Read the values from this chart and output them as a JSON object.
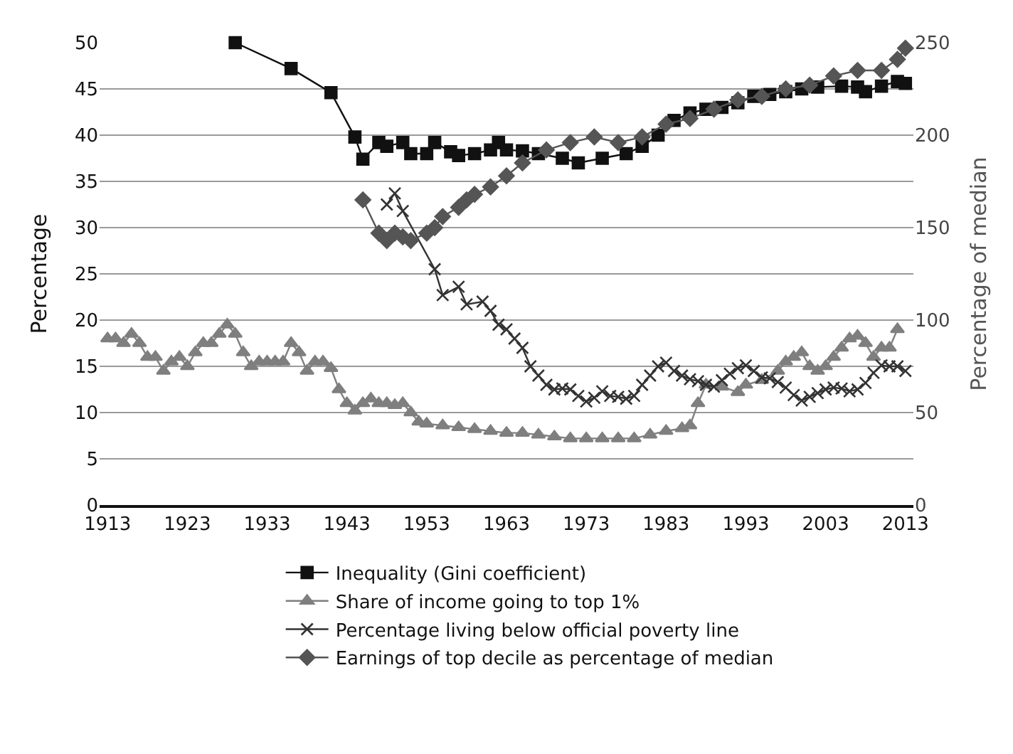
{
  "chart_data": {
    "type": "line",
    "ylabel": "Percentage",
    "y2label": "Percentage of median",
    "xlim": [
      1912,
      2014
    ],
    "xticks": [
      1913,
      1923,
      1933,
      1943,
      1953,
      1963,
      1973,
      1983,
      1993,
      2003,
      2013
    ],
    "ylim": [
      0,
      50
    ],
    "yticks": [
      0,
      5,
      10,
      15,
      20,
      25,
      30,
      35,
      40,
      45,
      50
    ],
    "y2lim": [
      0,
      250
    ],
    "y2ticks": [
      0,
      50,
      100,
      150,
      200,
      250
    ],
    "grid": "y",
    "legend": "bottom",
    "line_style": "solid",
    "series": [
      {
        "name": "Inequality (Gini coefficient)",
        "color": "#111111",
        "marker": "square",
        "x": [
          1929,
          1936,
          1941,
          1944,
          1945,
          1947,
          1948,
          1950,
          1951,
          1953,
          1954,
          1956,
          1957,
          1959,
          1961,
          1962,
          1963,
          1965,
          1967,
          1970,
          1972,
          1975,
          1978,
          1980,
          1982,
          1984,
          1986,
          1988,
          1990,
          1992,
          1994,
          1996,
          1998,
          2000,
          2002,
          2005,
          2007,
          2008,
          2010,
          2012,
          2013
        ],
        "values": [
          50,
          47.2,
          44.6,
          39.8,
          37.4,
          39.2,
          38.8,
          39.2,
          38,
          38,
          39.2,
          38.2,
          37.8,
          38,
          38.4,
          39.2,
          38.4,
          38.3,
          38,
          37.5,
          37,
          37.5,
          38,
          38.8,
          40,
          41.6,
          42.4,
          42.8,
          43,
          43.5,
          44.2,
          44.4,
          44.7,
          45,
          45.2,
          45.3,
          45.2,
          44.7,
          45.3,
          45.8,
          45.6
        ]
      },
      {
        "name": "Share of income going to top 1%",
        "color": "#7f7f7f",
        "marker": "triangle",
        "x": [
          1913,
          1914,
          1915,
          1916,
          1917,
          1918,
          1919,
          1920,
          1921,
          1922,
          1923,
          1924,
          1925,
          1926,
          1927,
          1928,
          1929,
          1930,
          1931,
          1932,
          1933,
          1934,
          1935,
          1936,
          1937,
          1938,
          1939,
          1940,
          1941,
          1942,
          1943,
          1944,
          1945,
          1946,
          1947,
          1948,
          1949,
          1950,
          1951,
          1952,
          1953,
          1955,
          1957,
          1959,
          1961,
          1963,
          1965,
          1967,
          1969,
          1971,
          1973,
          1975,
          1977,
          1979,
          1981,
          1983,
          1985,
          1986,
          1987,
          1988,
          1990,
          1992,
          1993,
          1995,
          1997,
          1998,
          1999,
          2000,
          2001,
          2002,
          2003,
          2004,
          2005,
          2006,
          2007,
          2008,
          2009,
          2010,
          2011,
          2012
        ],
        "values": [
          18,
          18,
          17.5,
          18.5,
          17.5,
          16,
          16,
          14.5,
          15.5,
          16,
          15,
          16.5,
          17.5,
          17.5,
          18.5,
          19.5,
          18.5,
          16.5,
          15,
          15.5,
          15.5,
          15.5,
          15.5,
          17.5,
          16.5,
          14.5,
          15.5,
          15.5,
          14.8,
          12.5,
          11,
          10.2,
          11,
          11.5,
          11,
          11,
          10.8,
          11,
          10,
          9,
          8.8,
          8.6,
          8.4,
          8.2,
          8,
          7.8,
          7.8,
          7.6,
          7.4,
          7.2,
          7.2,
          7.2,
          7.2,
          7.2,
          7.6,
          8,
          8.3,
          8.6,
          11,
          13,
          12.8,
          12.2,
          13,
          13.5,
          14.5,
          15.5,
          16,
          16.5,
          15,
          14.5,
          15,
          16,
          17,
          18,
          18.3,
          17.5,
          16,
          17,
          17,
          19
        ]
      },
      {
        "name": "Percentage living below official poverty line",
        "color": "#333333",
        "marker": "cross",
        "x": [
          1948,
          1949,
          1950,
          1954,
          1955,
          1957,
          1958,
          1960,
          1961,
          1962,
          1963,
          1964,
          1965,
          1966,
          1967,
          1968,
          1969,
          1970,
          1971,
          1972,
          1973,
          1974,
          1975,
          1976,
          1977,
          1978,
          1979,
          1980,
          1981,
          1982,
          1983,
          1984,
          1985,
          1986,
          1987,
          1988,
          1989,
          1990,
          1991,
          1992,
          1993,
          1994,
          1995,
          1996,
          1997,
          1998,
          1999,
          2000,
          2001,
          2002,
          2003,
          2004,
          2005,
          2006,
          2007,
          2008,
          2009,
          2010,
          2011,
          2012,
          2013
        ],
        "values": [
          32.5,
          33.7,
          31.8,
          25.5,
          22.7,
          23.6,
          21.7,
          22,
          21,
          19.5,
          19,
          18,
          17,
          15,
          14,
          13,
          12.5,
          12.6,
          12.5,
          11.8,
          11.2,
          11.6,
          12.3,
          11.8,
          11.7,
          11.5,
          11.8,
          13,
          14,
          15,
          15.4,
          14.5,
          14,
          13.6,
          13.4,
          13,
          12.8,
          13.5,
          14.2,
          14.8,
          15.1,
          14.5,
          13.8,
          13.7,
          13.3,
          12.7,
          11.9,
          11.3,
          11.7,
          12.1,
          12.5,
          12.7,
          12.6,
          12.3,
          12.5,
          13.2,
          14.3,
          15.1,
          15,
          15,
          14.5
        ]
      },
      {
        "name": "Earnings of top decile as percentage of median",
        "color": "#555555",
        "marker": "diamond",
        "axis": "y2",
        "x": [
          1945,
          1947,
          1948,
          1949,
          1950,
          1951,
          1953,
          1954,
          1955,
          1957,
          1958,
          1959,
          1961,
          1963,
          1965,
          1968,
          1971,
          1974,
          1977,
          1980,
          1983,
          1986,
          1989,
          1992,
          1995,
          1998,
          2001,
          2004,
          2007,
          2010,
          2012,
          2013
        ],
        "values": [
          165,
          147,
          143,
          147,
          145,
          143,
          147,
          150,
          156,
          161,
          165,
          168,
          172,
          178,
          185,
          192,
          196,
          199,
          196,
          199,
          206,
          209,
          214,
          219,
          221,
          225,
          227,
          232,
          235,
          235,
          241,
          247
        ]
      }
    ]
  }
}
